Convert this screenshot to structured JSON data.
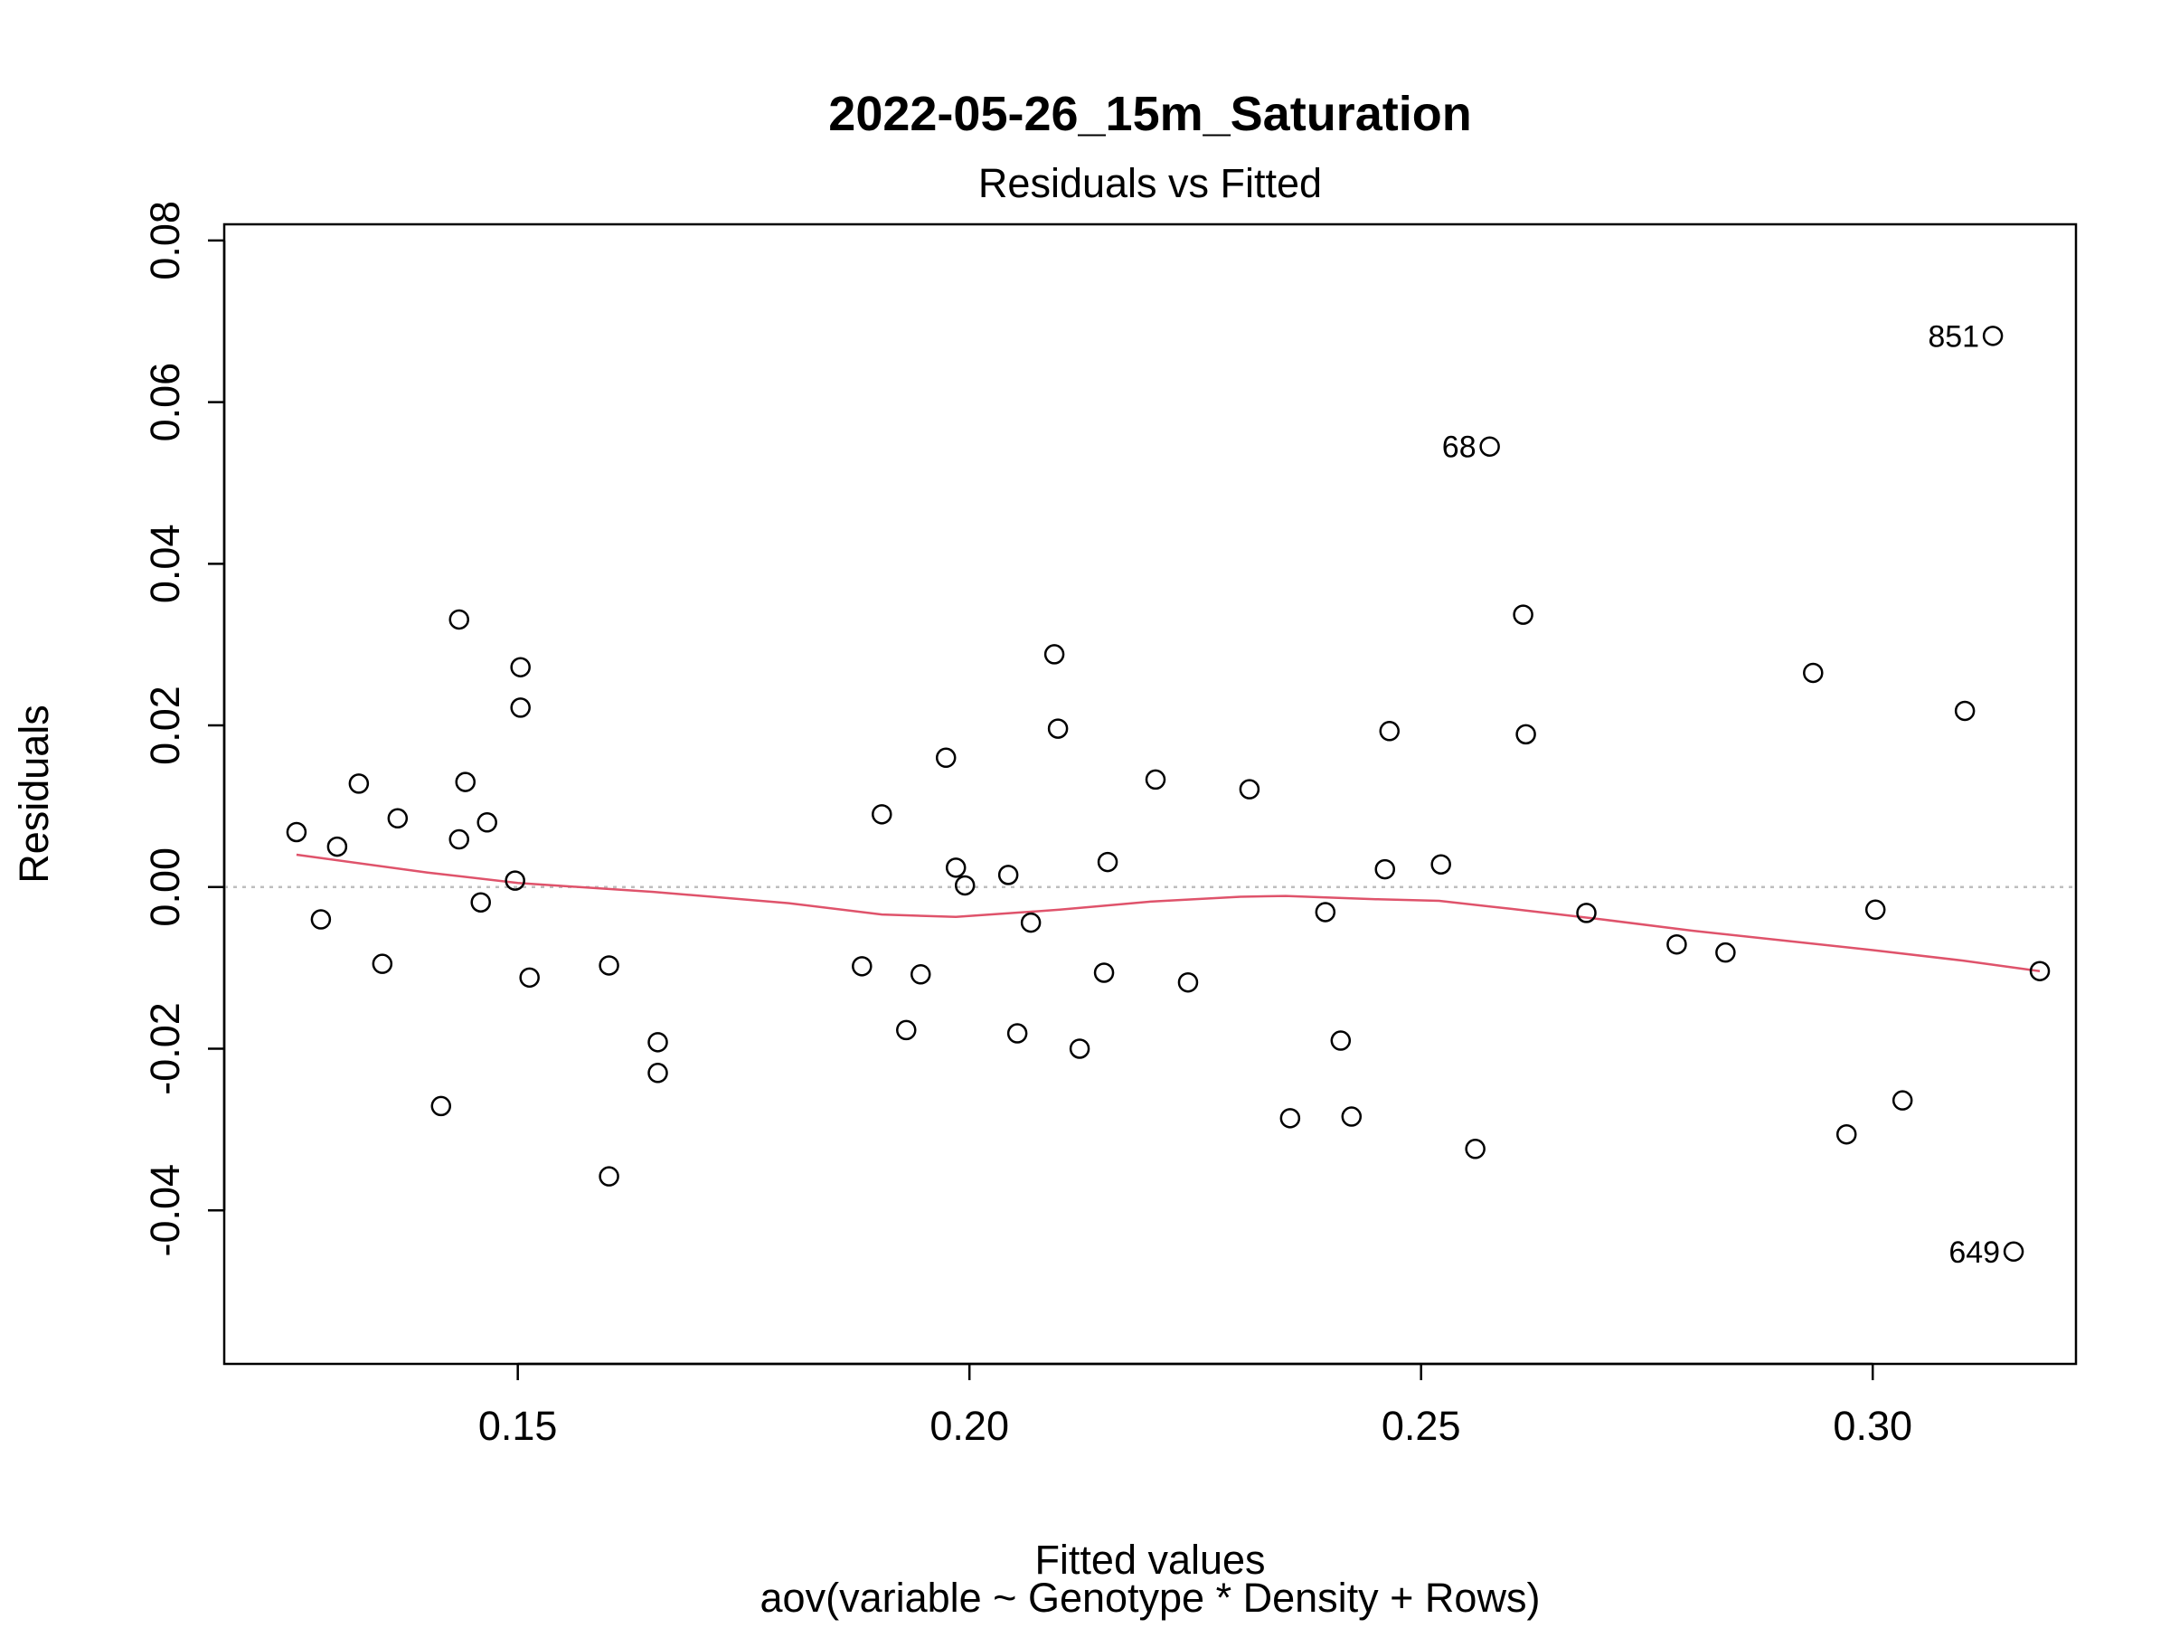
{
  "chart_data": {
    "type": "scatter",
    "title": "2022-05-26_15m_Saturation",
    "subtitle": "Residuals vs Fitted",
    "xlabel": "Fitted values",
    "xlabel2": "aov(variable ~ Genotype * Density + Rows)",
    "ylabel": "Residuals",
    "xlim": [
      0.1175,
      0.3225
    ],
    "ylim": [
      -0.059,
      0.082
    ],
    "x_ticks": [
      0.15,
      0.2,
      0.25,
      0.3
    ],
    "x_tick_labels": [
      "0.15",
      "0.20",
      "0.25",
      "0.30"
    ],
    "y_ticks": [
      -0.04,
      -0.02,
      0.0,
      0.02,
      0.04,
      0.06,
      0.08
    ],
    "y_tick_labels": [
      "-0.04",
      "-0.02",
      "0.00",
      "0.02",
      "0.04",
      "0.06",
      "0.08"
    ],
    "grid": false,
    "reference_line": 0,
    "colors": {
      "points": "#000000",
      "smooth": "#DF536B",
      "reference": "#BEBEBE"
    },
    "points": [
      {
        "x": 0.1255,
        "y": 0.0068
      },
      {
        "x": 0.1282,
        "y": -0.004
      },
      {
        "x": 0.13,
        "y": 0.005
      },
      {
        "x": 0.1324,
        "y": 0.0128
      },
      {
        "x": 0.135,
        "y": -0.0095
      },
      {
        "x": 0.1367,
        "y": 0.0085
      },
      {
        "x": 0.1415,
        "y": -0.0271
      },
      {
        "x": 0.1435,
        "y": 0.0331
      },
      {
        "x": 0.1435,
        "y": 0.0059
      },
      {
        "x": 0.1442,
        "y": 0.013
      },
      {
        "x": 0.1459,
        "y": -0.0019
      },
      {
        "x": 0.1466,
        "y": 0.008
      },
      {
        "x": 0.1497,
        "y": 0.0008
      },
      {
        "x": 0.1503,
        "y": 0.0272
      },
      {
        "x": 0.1503,
        "y": 0.0222
      },
      {
        "x": 0.1513,
        "y": -0.0112
      },
      {
        "x": 0.1601,
        "y": -0.0358
      },
      {
        "x": 0.1601,
        "y": -0.0097
      },
      {
        "x": 0.1655,
        "y": -0.0192
      },
      {
        "x": 0.1655,
        "y": -0.023
      },
      {
        "x": 0.1881,
        "y": -0.0098
      },
      {
        "x": 0.1903,
        "y": 0.009
      },
      {
        "x": 0.193,
        "y": -0.0177
      },
      {
        "x": 0.1946,
        "y": -0.0108
      },
      {
        "x": 0.1974,
        "y": 0.016
      },
      {
        "x": 0.1985,
        "y": 0.0024
      },
      {
        "x": 0.1995,
        "y": 0.0002
      },
      {
        "x": 0.2043,
        "y": 0.0015
      },
      {
        "x": 0.2053,
        "y": -0.0181
      },
      {
        "x": 0.2068,
        "y": -0.0044
      },
      {
        "x": 0.2094,
        "y": 0.0288
      },
      {
        "x": 0.2098,
        "y": 0.0196
      },
      {
        "x": 0.2122,
        "y": -0.02
      },
      {
        "x": 0.2149,
        "y": -0.0106
      },
      {
        "x": 0.2153,
        "y": 0.0031
      },
      {
        "x": 0.2206,
        "y": 0.0133
      },
      {
        "x": 0.2242,
        "y": -0.0118
      },
      {
        "x": 0.231,
        "y": 0.0121
      },
      {
        "x": 0.2355,
        "y": -0.0286
      },
      {
        "x": 0.2394,
        "y": -0.0031
      },
      {
        "x": 0.2411,
        "y": -0.019
      },
      {
        "x": 0.2423,
        "y": -0.0284
      },
      {
        "x": 0.246,
        "y": 0.0022
      },
      {
        "x": 0.2465,
        "y": 0.0193
      },
      {
        "x": 0.2522,
        "y": 0.0028
      },
      {
        "x": 0.256,
        "y": -0.0324
      },
      {
        "x": 0.2576,
        "y": 0.0545,
        "label": "68"
      },
      {
        "x": 0.2613,
        "y": 0.0337
      },
      {
        "x": 0.2616,
        "y": 0.0189
      },
      {
        "x": 0.2683,
        "y": -0.0032
      },
      {
        "x": 0.2783,
        "y": -0.0071
      },
      {
        "x": 0.2837,
        "y": -0.0081
      },
      {
        "x": 0.2934,
        "y": 0.0265
      },
      {
        "x": 0.2971,
        "y": -0.0306
      },
      {
        "x": 0.3003,
        "y": -0.0028
      },
      {
        "x": 0.3033,
        "y": -0.0264
      },
      {
        "x": 0.3102,
        "y": 0.0218
      },
      {
        "x": 0.3133,
        "y": 0.0682,
        "label": "851"
      },
      {
        "x": 0.3156,
        "y": -0.0451,
        "label": "649"
      },
      {
        "x": 0.3185,
        "y": -0.0104
      }
    ],
    "smooth_line": [
      {
        "x": 0.1255,
        "y": 0.004
      },
      {
        "x": 0.14,
        "y": 0.0018
      },
      {
        "x": 0.15,
        "y": 0.0005
      },
      {
        "x": 0.165,
        "y": -0.0006
      },
      {
        "x": 0.18,
        "y": -0.002
      },
      {
        "x": 0.1903,
        "y": -0.0034
      },
      {
        "x": 0.1985,
        "y": -0.0037
      },
      {
        "x": 0.21,
        "y": -0.0028
      },
      {
        "x": 0.22,
        "y": -0.0018
      },
      {
        "x": 0.23,
        "y": -0.0012
      },
      {
        "x": 0.235,
        "y": -0.0011
      },
      {
        "x": 0.245,
        "y": -0.0015
      },
      {
        "x": 0.252,
        "y": -0.0017
      },
      {
        "x": 0.26,
        "y": -0.0027
      },
      {
        "x": 0.27,
        "y": -0.004
      },
      {
        "x": 0.28,
        "y": -0.0054
      },
      {
        "x": 0.29,
        "y": -0.0066
      },
      {
        "x": 0.3,
        "y": -0.0078
      },
      {
        "x": 0.31,
        "y": -0.0091
      },
      {
        "x": 0.3185,
        "y": -0.0104
      }
    ]
  }
}
